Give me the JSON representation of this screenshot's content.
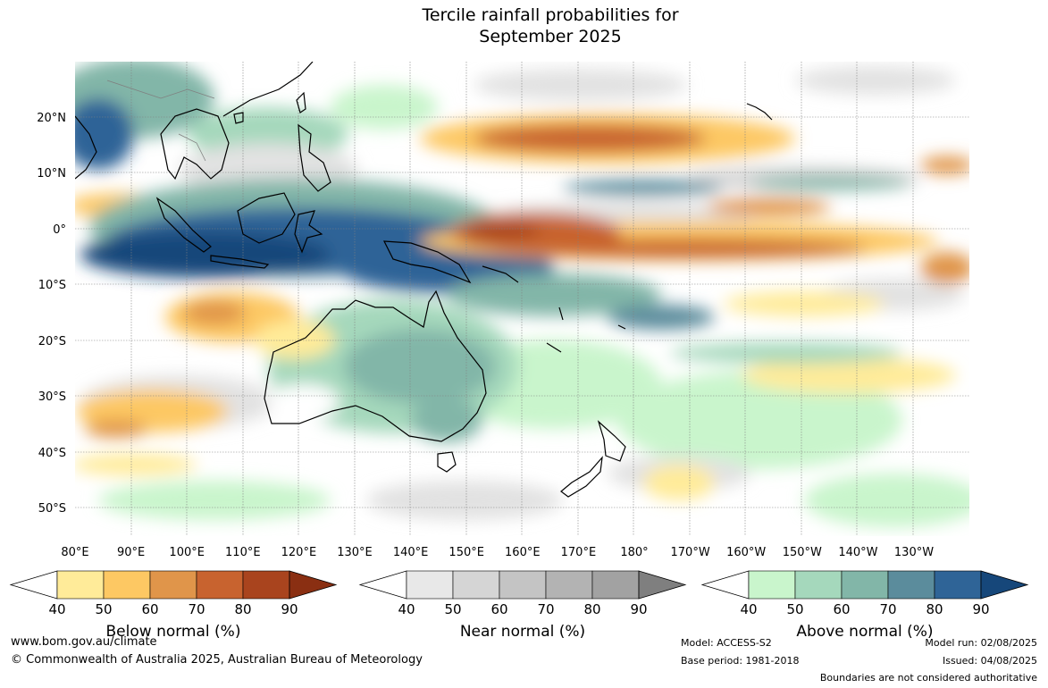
{
  "title": [
    "Tercile rainfall probabilities for",
    "September 2025"
  ],
  "lat_labels": [
    "20°N",
    "10°N",
    "0°",
    "10°S",
    "20°S",
    "30°S",
    "40°S",
    "50°S"
  ],
  "lon_labels": [
    "80°E",
    "90°E",
    "100°E",
    "110°E",
    "120°E",
    "130°E",
    "140°E",
    "150°E",
    "160°E",
    "170°E",
    "180°",
    "170°W",
    "160°W",
    "150°W",
    "140°W",
    "130°W"
  ],
  "legends": [
    {
      "label": "Below normal (%)",
      "ticks": [
        "40",
        "50",
        "60",
        "70",
        "80",
        "90"
      ],
      "colors": [
        "#ffeb99",
        "#fdc863",
        "#e0954a",
        "#c8632f",
        "#a9441e",
        "#8a2f12"
      ]
    },
    {
      "label": "Near normal (%)",
      "ticks": [
        "40",
        "50",
        "60",
        "70",
        "80",
        "90"
      ],
      "colors": [
        "#e8e8e8",
        "#d5d5d5",
        "#c4c4c4",
        "#b3b3b3",
        "#a2a2a2",
        "#7f7f7f"
      ]
    },
    {
      "label": "Above normal (%)",
      "ticks": [
        "40",
        "50",
        "60",
        "70",
        "80",
        "90"
      ],
      "colors": [
        "#c9f5cc",
        "#a5d8bc",
        "#82b6a8",
        "#5b8c9c",
        "#2f6497",
        "#16477a"
      ]
    }
  ],
  "footer": {
    "url": "www.bom.gov.au/climate",
    "copyright": "© Commonwealth of Australia 2025, Australian Bureau of Meteorology",
    "model": "Model: ACCESS-S2",
    "base_period": "Base period: 1981-2018",
    "model_run": "Model run: 02/08/2025",
    "issued": "Issued: 04/08/2025",
    "note": "Boundaries are not considered authoritative"
  }
}
